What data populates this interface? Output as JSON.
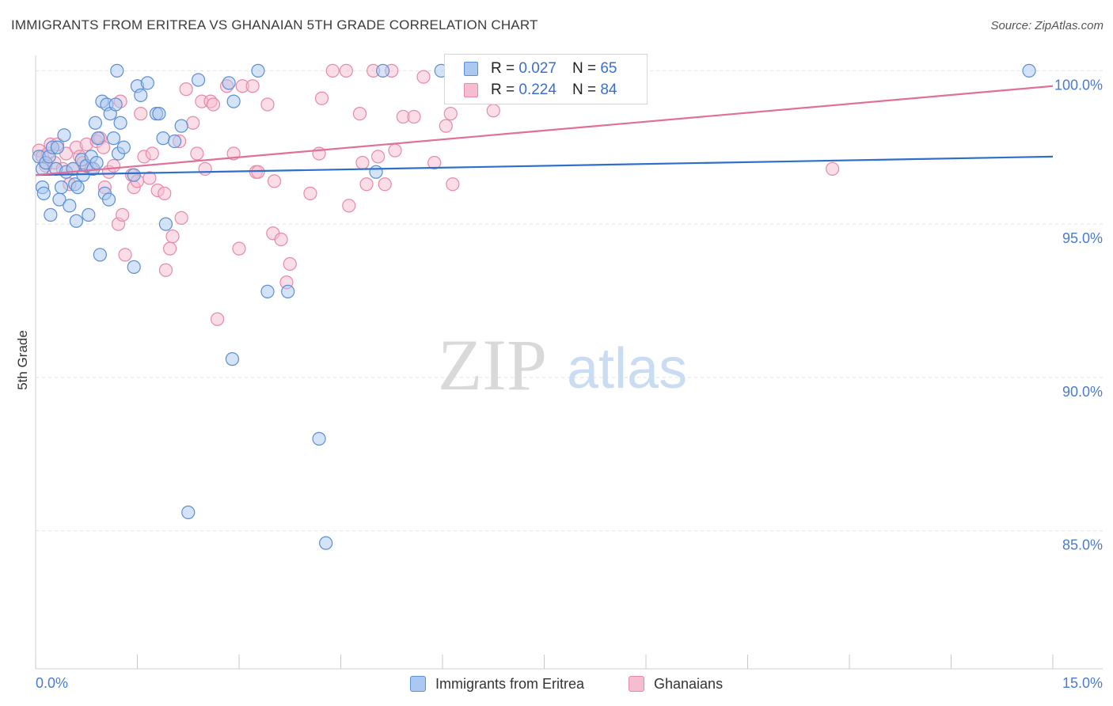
{
  "header": {
    "title": "IMMIGRANTS FROM ERITREA VS GHANAIAN 5TH GRADE CORRELATION CHART",
    "source": "Source: ZipAtlas.com"
  },
  "watermark": {
    "zip": "ZIP",
    "atlas": "atlas"
  },
  "legend_top": [
    {
      "r_label": "R =",
      "r_value": "0.027",
      "n_label": "N =",
      "n_value": "65"
    },
    {
      "r_label": "R =",
      "r_value": "0.224",
      "n_label": "N =",
      "n_value": "84"
    }
  ],
  "legend_bottom": [
    {
      "label": "Immigrants from Eritrea"
    },
    {
      "label": "Ghanaians"
    }
  ],
  "colors": {
    "blue_fill": "#aac8f0",
    "blue_stroke": "#5a8fd6",
    "blue_line": "#2e6fcb",
    "pink_fill": "#f6bcd0",
    "pink_stroke": "#e889a8",
    "pink_line": "#e0709a",
    "axis_text": "#4a7bd0",
    "grid": "#e2e2e2"
  },
  "chart_data": {
    "type": "scatter",
    "title": "IMMIGRANTS FROM ERITREA VS GHANAIAN 5TH GRADE CORRELATION CHART",
    "xlabel": "",
    "ylabel": "5th Grade",
    "xlim": [
      0,
      15
    ],
    "ylim": [
      80.5,
      100.5
    ],
    "x_tick_labels": [
      {
        "value": 0,
        "label": "0.0%"
      },
      {
        "value": 15,
        "label": "15.0%"
      }
    ],
    "y_tick_labels": [
      {
        "value": 100,
        "label": "100.0%"
      },
      {
        "value": 95,
        "label": "95.0%"
      },
      {
        "value": 90,
        "label": "90.0%"
      },
      {
        "value": 85,
        "label": "85.0%"
      }
    ],
    "series": [
      {
        "name": "Immigrants from Eritrea",
        "color": "blue",
        "trend": {
          "x": [
            0,
            15
          ],
          "y": [
            96.6,
            97.2
          ]
        },
        "points": [
          [
            0.05,
            97.2
          ],
          [
            0.1,
            96.8
          ],
          [
            0.1,
            96.2
          ],
          [
            0.12,
            96.0
          ],
          [
            0.15,
            97.0
          ],
          [
            0.2,
            97.2
          ],
          [
            0.22,
            95.3
          ],
          [
            0.25,
            97.5
          ],
          [
            0.3,
            96.8
          ],
          [
            0.32,
            97.5
          ],
          [
            0.35,
            95.8
          ],
          [
            0.38,
            96.2
          ],
          [
            0.42,
            97.9
          ],
          [
            0.45,
            96.7
          ],
          [
            0.5,
            95.6
          ],
          [
            0.55,
            96.8
          ],
          [
            0.58,
            96.3
          ],
          [
            0.6,
            95.1
          ],
          [
            0.62,
            96.2
          ],
          [
            0.68,
            97.1
          ],
          [
            0.7,
            96.6
          ],
          [
            0.75,
            96.9
          ],
          [
            0.78,
            95.3
          ],
          [
            0.82,
            97.2
          ],
          [
            0.85,
            96.8
          ],
          [
            0.88,
            98.3
          ],
          [
            0.92,
            97.8
          ],
          [
            0.95,
            94.0
          ],
          [
            0.98,
            99.0
          ],
          [
            1.02,
            96.0
          ],
          [
            1.05,
            98.9
          ],
          [
            1.08,
            95.8
          ],
          [
            1.1,
            98.6
          ],
          [
            1.15,
            97.8
          ],
          [
            1.18,
            98.9
          ],
          [
            1.22,
            97.3
          ],
          [
            1.25,
            98.3
          ],
          [
            1.3,
            97.5
          ],
          [
            1.45,
            96.6
          ],
          [
            1.45,
            93.6
          ],
          [
            1.5,
            99.5
          ],
          [
            1.55,
            99.2
          ],
          [
            1.65,
            99.6
          ],
          [
            1.78,
            98.6
          ],
          [
            1.82,
            98.6
          ],
          [
            1.88,
            97.8
          ],
          [
            1.92,
            95.0
          ],
          [
            2.05,
            97.7
          ],
          [
            2.15,
            98.2
          ],
          [
            2.25,
            85.6
          ],
          [
            2.4,
            99.7
          ],
          [
            2.85,
            99.6
          ],
          [
            2.9,
            90.6
          ],
          [
            2.92,
            99.0
          ],
          [
            3.28,
            100.0
          ],
          [
            3.42,
            92.8
          ],
          [
            3.72,
            92.8
          ],
          [
            4.18,
            88.0
          ],
          [
            4.28,
            84.6
          ],
          [
            5.12,
            100.0
          ],
          [
            5.02,
            96.7
          ],
          [
            5.98,
            100.0
          ],
          [
            14.65,
            100.0
          ],
          [
            1.2,
            100.0
          ],
          [
            0.9,
            97.0
          ]
        ]
      },
      {
        "name": "Ghanaians",
        "color": "pink",
        "trend": {
          "x": [
            0,
            15
          ],
          "y": [
            96.6,
            99.5
          ]
        },
        "points": [
          [
            0.05,
            97.4
          ],
          [
            0.1,
            97.2
          ],
          [
            0.15,
            96.9
          ],
          [
            0.18,
            97.3
          ],
          [
            0.22,
            97.6
          ],
          [
            0.28,
            97.0
          ],
          [
            0.32,
            97.6
          ],
          [
            0.4,
            96.8
          ],
          [
            0.45,
            97.3
          ],
          [
            0.5,
            96.3
          ],
          [
            0.55,
            96.8
          ],
          [
            0.6,
            97.5
          ],
          [
            0.65,
            97.2
          ],
          [
            0.7,
            97.0
          ],
          [
            0.75,
            97.6
          ],
          [
            0.82,
            96.8
          ],
          [
            0.9,
            97.7
          ],
          [
            0.95,
            97.8
          ],
          [
            1.0,
            97.5
          ],
          [
            1.02,
            96.2
          ],
          [
            1.08,
            96.7
          ],
          [
            1.15,
            96.9
          ],
          [
            1.22,
            95.0
          ],
          [
            1.28,
            95.3
          ],
          [
            1.32,
            94.0
          ],
          [
            1.42,
            96.6
          ],
          [
            1.45,
            96.2
          ],
          [
            1.5,
            96.4
          ],
          [
            1.55,
            98.6
          ],
          [
            1.6,
            97.2
          ],
          [
            1.68,
            96.5
          ],
          [
            1.72,
            97.3
          ],
          [
            1.8,
            96.1
          ],
          [
            1.9,
            96.0
          ],
          [
            1.92,
            93.5
          ],
          [
            1.98,
            94.2
          ],
          [
            2.02,
            94.6
          ],
          [
            2.12,
            97.7
          ],
          [
            2.15,
            95.2
          ],
          [
            2.22,
            99.4
          ],
          [
            2.32,
            98.3
          ],
          [
            2.38,
            97.3
          ],
          [
            2.45,
            99.0
          ],
          [
            2.5,
            96.8
          ],
          [
            2.58,
            99.0
          ],
          [
            2.62,
            98.9
          ],
          [
            2.68,
            91.9
          ],
          [
            2.82,
            99.5
          ],
          [
            2.92,
            97.3
          ],
          [
            3.0,
            94.2
          ],
          [
            3.05,
            99.5
          ],
          [
            3.2,
            99.5
          ],
          [
            3.25,
            96.7
          ],
          [
            3.28,
            96.7
          ],
          [
            3.42,
            98.9
          ],
          [
            3.5,
            94.7
          ],
          [
            3.52,
            96.4
          ],
          [
            3.62,
            94.5
          ],
          [
            3.7,
            93.1
          ],
          [
            3.75,
            93.7
          ],
          [
            4.05,
            96.0
          ],
          [
            4.18,
            97.3
          ],
          [
            4.22,
            99.1
          ],
          [
            4.38,
            100.0
          ],
          [
            4.58,
            100.0
          ],
          [
            4.62,
            95.6
          ],
          [
            4.78,
            98.6
          ],
          [
            4.88,
            96.3
          ],
          [
            4.98,
            100.0
          ],
          [
            5.05,
            97.2
          ],
          [
            5.15,
            96.3
          ],
          [
            5.3,
            97.4
          ],
          [
            5.42,
            98.5
          ],
          [
            5.58,
            98.5
          ],
          [
            5.72,
            99.8
          ],
          [
            5.88,
            97.0
          ],
          [
            6.05,
            98.2
          ],
          [
            6.12,
            98.6
          ],
          [
            6.15,
            96.3
          ],
          [
            6.75,
            98.7
          ],
          [
            11.75,
            96.8
          ],
          [
            5.25,
            100.0
          ],
          [
            4.82,
            97.0
          ],
          [
            1.25,
            99.0
          ]
        ]
      }
    ]
  }
}
